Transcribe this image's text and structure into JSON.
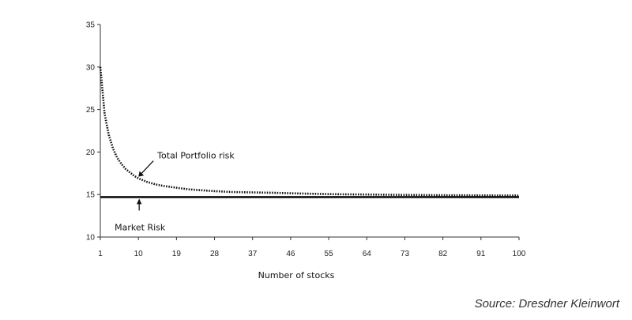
{
  "chart_data": {
    "type": "line",
    "xlabel": "Number of stocks",
    "ylabel": "",
    "xlim": [
      1,
      100
    ],
    "ylim": [
      10,
      35
    ],
    "y_ticks": [
      10,
      15,
      20,
      25,
      30,
      35
    ],
    "x_ticks": [
      1,
      10,
      19,
      28,
      37,
      46,
      55,
      64,
      73,
      82,
      91,
      100
    ],
    "grid": false,
    "series": [
      {
        "name": "Total Portfolio risk",
        "style": "dotted",
        "x": [
          1,
          2,
          3,
          4,
          5,
          6,
          7,
          8,
          9,
          10,
          12,
          14,
          16,
          19,
          22,
          25,
          28,
          32,
          37,
          42,
          46,
          50,
          55,
          64,
          73,
          82,
          91,
          100
        ],
        "y": [
          30,
          24.5,
          22,
          20.4,
          19.3,
          18.6,
          18.0,
          17.6,
          17.2,
          16.9,
          16.5,
          16.2,
          16.0,
          15.8,
          15.6,
          15.5,
          15.4,
          15.3,
          15.25,
          15.2,
          15.15,
          15.1,
          15.05,
          15.0,
          14.95,
          14.92,
          14.9,
          14.88
        ]
      },
      {
        "name": "Market Risk",
        "style": "solid",
        "x": [
          1,
          100
        ],
        "y": [
          14.7,
          14.7
        ]
      }
    ],
    "annotations": [
      {
        "text": "Total Portfolio risk",
        "points_to": [
          10,
          17.1
        ]
      },
      {
        "text": "Market Risk",
        "points_to": [
          10,
          14.7
        ]
      }
    ]
  },
  "source": "Source: Dresdner Kleinwort",
  "colors": {
    "line": "#111111",
    "axis": "#333333"
  }
}
